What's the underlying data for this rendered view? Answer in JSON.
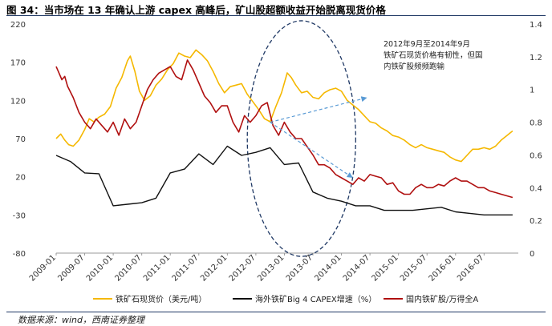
{
  "header": {
    "title": "图 34：当市场在 13 年确认上游 capex 高峰后，矿山股超额收益开始脱离现货价格"
  },
  "footer": {
    "source": "数据来源：wind，西南证券整理"
  },
  "colors": {
    "ore": "#f5b800",
    "capex": "#111111",
    "mining": "#b01010",
    "ellipse": "#1f3864",
    "arrow": "#5a9bd5"
  },
  "chart_data": {
    "type": "line",
    "title": "当市场在 13 年确认上游 capex 高峰后，矿山股超额收益开始脱离现货价格",
    "categories": [
      "2009-01",
      "2009-07",
      "2010-01",
      "2010-07",
      "2011-01",
      "2011-07",
      "2012-01",
      "2012-07",
      "2013-01",
      "2013-07",
      "2014-01",
      "2014-07",
      "2015-01",
      "2015-07",
      "2016-01",
      "2016-07"
    ],
    "y_left": {
      "ticks": [
        220,
        170,
        120,
        70,
        20,
        -30,
        -80
      ],
      "range": [
        -80,
        220
      ]
    },
    "y_right": {
      "ticks": [
        "1.4",
        "1.2",
        "1",
        "0.8",
        "0.6",
        "0.4",
        "0.2",
        "0"
      ],
      "range": [
        0,
        1.4
      ]
    },
    "series": [
      {
        "name": "铁矿石现货价（美元/吨）",
        "axis": "left",
        "color": "#f5b800",
        "x": [
          2009.0,
          2009.08,
          2009.15,
          2009.22,
          2009.3,
          2009.4,
          2009.5,
          2009.58,
          2009.66,
          2009.75,
          2009.85,
          2009.95,
          2010.05,
          2010.15,
          2010.25,
          2010.3,
          2010.38,
          2010.46,
          2010.55,
          2010.65,
          2010.75,
          2010.85,
          2010.95,
          2011.05,
          2011.15,
          2011.25,
          2011.35,
          2011.45,
          2011.55,
          2011.65,
          2011.75,
          2011.85,
          2011.95,
          2012.05,
          2012.15,
          2012.25,
          2012.35,
          2012.45,
          2012.55,
          2012.65,
          2012.75,
          2012.85,
          2012.95,
          2013.05,
          2013.12,
          2013.2,
          2013.3,
          2013.4,
          2013.5,
          2013.6,
          2013.7,
          2013.8,
          2013.9,
          2014.0,
          2014.1,
          2014.2,
          2014.3,
          2014.4,
          2014.5,
          2014.6,
          2014.7,
          2014.8,
          2014.9,
          2015.0,
          2015.1,
          2015.2,
          2015.3,
          2015.4,
          2015.5,
          2015.6,
          2015.7,
          2015.8,
          2015.9,
          2016.0,
          2016.1,
          2016.2,
          2016.3,
          2016.4,
          2016.5,
          2016.6,
          2016.7,
          2016.8,
          2016.9,
          2017.0
        ],
        "values": [
          70,
          76,
          68,
          62,
          60,
          68,
          82,
          96,
          92,
          98,
          102,
          112,
          136,
          150,
          172,
          178,
          158,
          132,
          120,
          126,
          140,
          148,
          160,
          168,
          182,
          178,
          176,
          186,
          180,
          172,
          158,
          142,
          130,
          138,
          140,
          142,
          128,
          118,
          108,
          96,
          92,
          112,
          130,
          156,
          150,
          140,
          130,
          132,
          124,
          122,
          130,
          134,
          136,
          132,
          120,
          114,
          108,
          100,
          92,
          90,
          84,
          80,
          74,
          72,
          68,
          62,
          58,
          62,
          58,
          56,
          54,
          52,
          46,
          42,
          40,
          48,
          56,
          56,
          58,
          56,
          60,
          68,
          74,
          80
        ]
      },
      {
        "name": "海外铁矿Big 4 CAPEX增速（%）",
        "axis": "left",
        "color": "#111111",
        "x": [
          2009.0,
          2009.25,
          2009.5,
          2009.75,
          2010.0,
          2010.25,
          2010.5,
          2010.75,
          2011.0,
          2011.25,
          2011.5,
          2011.75,
          2012.0,
          2012.25,
          2012.5,
          2012.75,
          2013.0,
          2013.25,
          2013.5,
          2013.75,
          2014.0,
          2014.25,
          2014.5,
          2014.75,
          2015.0,
          2015.25,
          2015.5,
          2015.75,
          2016.0,
          2016.25,
          2016.5,
          2016.75,
          2017.0
        ],
        "values": [
          48,
          40,
          25,
          24,
          -18,
          -16,
          -14,
          -8,
          25,
          30,
          50,
          36,
          60,
          48,
          52,
          58,
          36,
          38,
          0,
          -8,
          -12,
          -18,
          -18,
          -24,
          -24,
          -24,
          -22,
          -20,
          -26,
          -28,
          -30,
          -30,
          -30
        ]
      },
      {
        "name": "国内铁矿股/万得全A",
        "axis": "right",
        "color": "#b01010",
        "x": [
          2009.0,
          2009.05,
          2009.1,
          2009.15,
          2009.2,
          2009.3,
          2009.4,
          2009.5,
          2009.6,
          2009.7,
          2009.8,
          2009.9,
          2010.0,
          2010.1,
          2010.2,
          2010.3,
          2010.4,
          2010.5,
          2010.6,
          2010.7,
          2010.8,
          2010.9,
          2011.0,
          2011.1,
          2011.2,
          2011.3,
          2011.4,
          2011.5,
          2011.6,
          2011.7,
          2011.8,
          2011.9,
          2012.0,
          2012.1,
          2012.2,
          2012.3,
          2012.4,
          2012.5,
          2012.6,
          2012.7,
          2012.8,
          2012.9,
          2013.0,
          2013.1,
          2013.2,
          2013.3,
          2013.4,
          2013.5,
          2013.6,
          2013.7,
          2013.8,
          2013.9,
          2014.0,
          2014.1,
          2014.2,
          2014.3,
          2014.4,
          2014.5,
          2014.6,
          2014.7,
          2014.8,
          2014.9,
          2015.0,
          2015.1,
          2015.2,
          2015.3,
          2015.4,
          2015.5,
          2015.6,
          2015.7,
          2015.8,
          2015.9,
          2016.0,
          2016.1,
          2016.2,
          2016.3,
          2016.4,
          2016.5,
          2016.6,
          2016.7,
          2016.8,
          2016.9,
          2017.0
        ],
        "values": [
          1.14,
          1.1,
          1.06,
          1.08,
          1.02,
          0.95,
          0.86,
          0.8,
          0.76,
          0.82,
          0.78,
          0.74,
          0.8,
          0.72,
          0.82,
          0.76,
          0.8,
          0.9,
          1.0,
          1.06,
          1.1,
          1.12,
          1.14,
          1.08,
          1.06,
          1.18,
          1.12,
          1.04,
          0.96,
          0.92,
          0.86,
          0.9,
          0.9,
          0.8,
          0.74,
          0.84,
          0.8,
          0.84,
          0.9,
          0.92,
          0.78,
          0.72,
          0.8,
          0.74,
          0.7,
          0.7,
          0.65,
          0.6,
          0.54,
          0.54,
          0.52,
          0.48,
          0.46,
          0.44,
          0.42,
          0.46,
          0.44,
          0.48,
          0.47,
          0.46,
          0.42,
          0.43,
          0.38,
          0.36,
          0.36,
          0.4,
          0.42,
          0.4,
          0.4,
          0.42,
          0.41,
          0.44,
          0.46,
          0.44,
          0.44,
          0.42,
          0.4,
          0.4,
          0.38,
          0.37,
          0.36,
          0.35,
          0.34
        ]
      }
    ],
    "annotation": {
      "lines": [
        "2012年9月至2014年9月",
        "铁矿石现货价格有韧性，但国",
        "内铁矿股频频跑输"
      ]
    },
    "arrows": [
      {
        "from": [
          2012.75,
          0.8
        ],
        "to": [
          2014.45,
          0.95
        ]
      },
      {
        "from": [
          2012.75,
          0.8
        ],
        "to": [
          2014.2,
          0.46
        ]
      }
    ],
    "ellipse": {
      "cx": 2013.3,
      "cy": 0.7,
      "rx": 0.95,
      "ry": 0.72
    },
    "legend": [
      "铁矿石现货价（美元/吨）",
      "海外铁矿Big 4 CAPEX增速（%）",
      "国内铁矿股/万得全A"
    ]
  }
}
